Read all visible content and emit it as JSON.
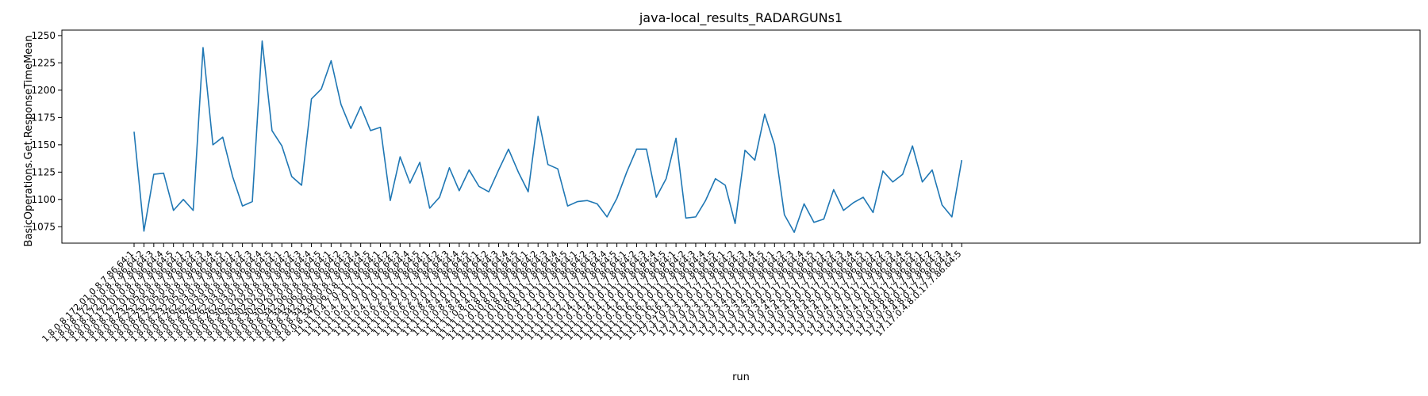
{
  "chart_data": {
    "type": "line",
    "title": "java-local_results_RADARGUNs1",
    "xlabel": "run",
    "ylabel": "BasicOperations.Get.ResponseTimeMean",
    "ylim": [
      1060,
      1255
    ],
    "yticks": [
      1075,
      1100,
      1125,
      1150,
      1175,
      1200,
      1225,
      1250
    ],
    "grid": false,
    "line_color": "#1f77b4",
    "categories": [
      "1.8.0.8.172.01.0.8.7.86.64:1",
      "1.8.0.8.172.01.0.8.7.86.64:2",
      "1.8.0.8.172.01.0.8.7.86.64:3",
      "1.8.0.8.172.01.0.8.7.86.64:4",
      "1.8.0.8.172.01.0.8.7.86.64:5",
      "1.8.0.8.232.05.0.8.7.86.64:1",
      "1.8.0.8.232.05.0.8.7.86.64:2",
      "1.8.0.8.232.05.0.8.7.86.64:3",
      "1.8.0.8.232.05.0.8.7.86.64:4",
      "1.8.0.8.232.05.0.8.7.86.64:5",
      "1.8.0.8.262.03.0.8.7.86.64:1",
      "1.8.0.8.262.03.0.8.7.86.64:2",
      "1.8.0.8.262.03.0.8.7.86.64:3",
      "1.8.0.8.262.03.0.8.7.86.64:4",
      "1.8.0.8.262.03.0.8.7.86.64:5",
      "1.8.0.8.302.02.0.8.7.86.64:1",
      "1.8.0.8.302.02.0.8.7.86.64:2",
      "1.8.0.8.302.02.0.8.7.86.64:3",
      "1.8.0.8.302.02.0.8.7.86.64:4",
      "1.8.0.8.302.02.0.8.7.86.64:5",
      "1.8.0.8.342.06.0.8.7.86.64:1",
      "1.8.0.8.342.06.0.8.7.86.64:2",
      "1.8.0.8.342.06.0.8.7.86.64:3",
      "1.8.0.8.342.06.0.8.7.86.64:4",
      "1.8.0.8.342.06.0.8.7.86.64:5",
      "11.11.0.4.7.0.11.7.86.64:1",
      "11.11.0.4.7.0.11.7.86.64:2",
      "11.11.0.4.7.0.11.7.86.64:3",
      "11.11.0.4.7.0.11.7.86.64:4",
      "11.11.0.4.7.0.11.7.86.64:5",
      "11.11.0.6.2.0.11.7.86.64:1",
      "11.11.0.6.2.0.11.7.86.64:2",
      "11.11.0.6.2.0.11.7.86.64:3",
      "11.11.0.6.2.0.11.7.86.64:4",
      "11.11.0.6.2.0.11.7.86.64:5",
      "11.11.0.8.4.0.11.7.86.64:1",
      "11.11.0.8.4.0.11.7.86.64:2",
      "11.11.0.8.4.0.11.7.86.64:3",
      "11.11.0.8.4.0.11.7.86.64:4",
      "11.11.0.8.4.0.11.7.86.64:5",
      "11.11.0.10.8.0.11.7.86.64:1",
      "11.11.0.10.8.0.11.7.86.64:2",
      "11.11.0.10.8.0.11.7.86.64:3",
      "11.11.0.10.8.0.11.7.86.64:4",
      "11.11.0.10.8.0.11.7.86.64:5",
      "11.11.0.12.1.0.11.7.86.64:1",
      "11.11.0.12.1.0.11.7.86.64:2",
      "11.11.0.12.1.0.11.7.86.64:3",
      "11.11.0.12.1.0.11.7.86.64:4",
      "11.11.0.12.1.0.11.7.86.64:5",
      "11.11.0.14.1.0.11.7.86.64:1",
      "11.11.0.14.1.0.11.7.86.64:2",
      "11.11.0.14.1.0.11.7.86.64:3",
      "11.11.0.14.1.0.11.7.86.64:4",
      "11.11.0.14.1.0.11.7.86.64:5",
      "11.11.0.16.1.0.11.7.86.64:1",
      "11.11.0.16.1.0.11.7.86.64:2",
      "11.11.0.16.1.0.11.7.86.64:3",
      "11.11.0.16.1.0.11.7.86.64:4",
      "11.11.0.16.1.0.11.7.86.64:5",
      "17.17.0.3.1.0.17.7.86.64:1",
      "17.17.0.3.1.0.17.7.86.64:2",
      "17.17.0.3.1.0.17.7.86.64:3",
      "17.17.0.3.1.0.17.7.86.64:4",
      "17.17.0.3.1.0.17.7.86.64:5",
      "17.17.0.3.4.0.17.7.86.64:1",
      "17.17.0.3.4.0.17.7.86.64:2",
      "17.17.0.3.4.0.17.7.86.64:3",
      "17.17.0.3.4.0.17.7.86.64:4",
      "17.17.0.3.4.0.17.7.86.64:5",
      "17.17.0.4.5.0.17.7.86.64:1",
      "17.17.0.4.5.0.17.7.86.64:2",
      "17.17.0.4.5.0.17.7.86.64:3",
      "17.17.0.4.5.0.17.7.86.64:4",
      "17.17.0.4.5.0.17.7.86.64:5",
      "17.17.0.4.7.0.17.7.86.64:1",
      "17.17.0.4.7.0.17.7.86.64:2",
      "17.17.0.4.7.0.17.7.86.64:3",
      "17.17.0.4.7.0.17.7.86.64:4",
      "17.17.0.4.7.0.17.7.86.64:5",
      "17.17.0.4.8.0.17.7.86.64:1",
      "17.17.0.4.8.0.17.7.86.64:2",
      "17.17.0.4.8.0.17.7.86.64:3",
      "17.17.0.4.8.0.17.7.86.64:4",
      "17.17.0.4.8.0.17.7.86.64:5"
    ],
    "values": [
      1162,
      1071,
      1123,
      1124,
      1090,
      1100,
      1090,
      1239,
      1150,
      1157,
      1121,
      1094,
      1098,
      1245,
      1163,
      1149,
      1121,
      1113,
      1192,
      1201,
      1227,
      1187,
      1165,
      1185,
      1163,
      1166,
      1099,
      1139,
      1115,
      1134,
      1092,
      1102,
      1129,
      1108,
      1127,
      1112,
      1107,
      1127,
      1146,
      1125,
      1107,
      1176,
      1132,
      1128,
      1094,
      1098,
      1099,
      1096,
      1084,
      1101,
      1125,
      1146,
      1146,
      1102,
      1119,
      1156,
      1083,
      1084,
      1099,
      1119,
      1113,
      1078,
      1145,
      1136,
      1178,
      1150,
      1086,
      1070,
      1096,
      1079,
      1082,
      1109,
      1090,
      1097,
      1102,
      1088,
      1126,
      1116,
      1123,
      1149,
      1116,
      1127,
      1095,
      1084,
      1136
    ]
  }
}
